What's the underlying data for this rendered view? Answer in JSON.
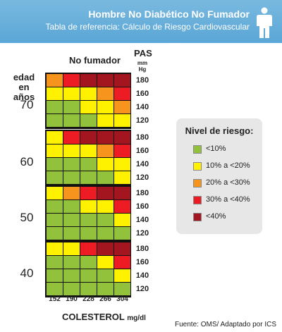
{
  "header": {
    "title": "Hombre No Diabético No Fumador",
    "subtitle": "Tabla de referencia: Cálculo de Riesgo Cardiovascular"
  },
  "condition_label": "No fumador",
  "pas_label": "PAS",
  "pas_unit": "mm Hg",
  "age_label_line1": "edad",
  "age_label_line2": "en años",
  "xlabel_main": "COLESTEROL",
  "xlabel_unit": "mg/dl",
  "legend": {
    "title": "Nivel de riesgo:",
    "items": [
      {
        "label": "<10%",
        "color": "#92c23b"
      },
      {
        "label": "10% a <20%",
        "color": "#fff200"
      },
      {
        "label": "20% a <30%",
        "color": "#f7941d"
      },
      {
        "label": "30% a <40%",
        "color": "#ed1c24"
      },
      {
        "label": "<40%",
        "color": "#a3161f"
      }
    ]
  },
  "source": "Fuente:  OMS/ Adaptado por ICS",
  "chart_data": {
    "type": "heatmap",
    "cholesterol_ticks": [
      "152",
      "190",
      "228",
      "266",
      "304"
    ],
    "pas_ticks": [
      "180",
      "160",
      "140",
      "120"
    ],
    "risk_levels": [
      "<10%",
      "10% a <20%",
      "20% a <30%",
      "30% a <40%",
      "<40%"
    ],
    "age_groups": [
      {
        "age": "70",
        "grid": [
          [
            2,
            3,
            4,
            4,
            4
          ],
          [
            1,
            1,
            1,
            2,
            3
          ],
          [
            0,
            0,
            1,
            1,
            2
          ],
          [
            0,
            0,
            0,
            1,
            1
          ]
        ]
      },
      {
        "age": "60",
        "grid": [
          [
            1,
            3,
            4,
            4,
            4
          ],
          [
            1,
            1,
            1,
            2,
            3
          ],
          [
            0,
            0,
            0,
            1,
            1
          ],
          [
            0,
            0,
            0,
            0,
            1
          ]
        ]
      },
      {
        "age": "50",
        "grid": [
          [
            1,
            2,
            3,
            4,
            4
          ],
          [
            0,
            0,
            1,
            1,
            3
          ],
          [
            0,
            0,
            0,
            0,
            1
          ],
          [
            0,
            0,
            0,
            0,
            0
          ]
        ]
      },
      {
        "age": "40",
        "grid": [
          [
            1,
            1,
            3,
            4,
            4
          ],
          [
            0,
            0,
            0,
            1,
            3
          ],
          [
            0,
            0,
            0,
            0,
            1
          ],
          [
            0,
            0,
            0,
            0,
            0
          ]
        ]
      }
    ]
  }
}
